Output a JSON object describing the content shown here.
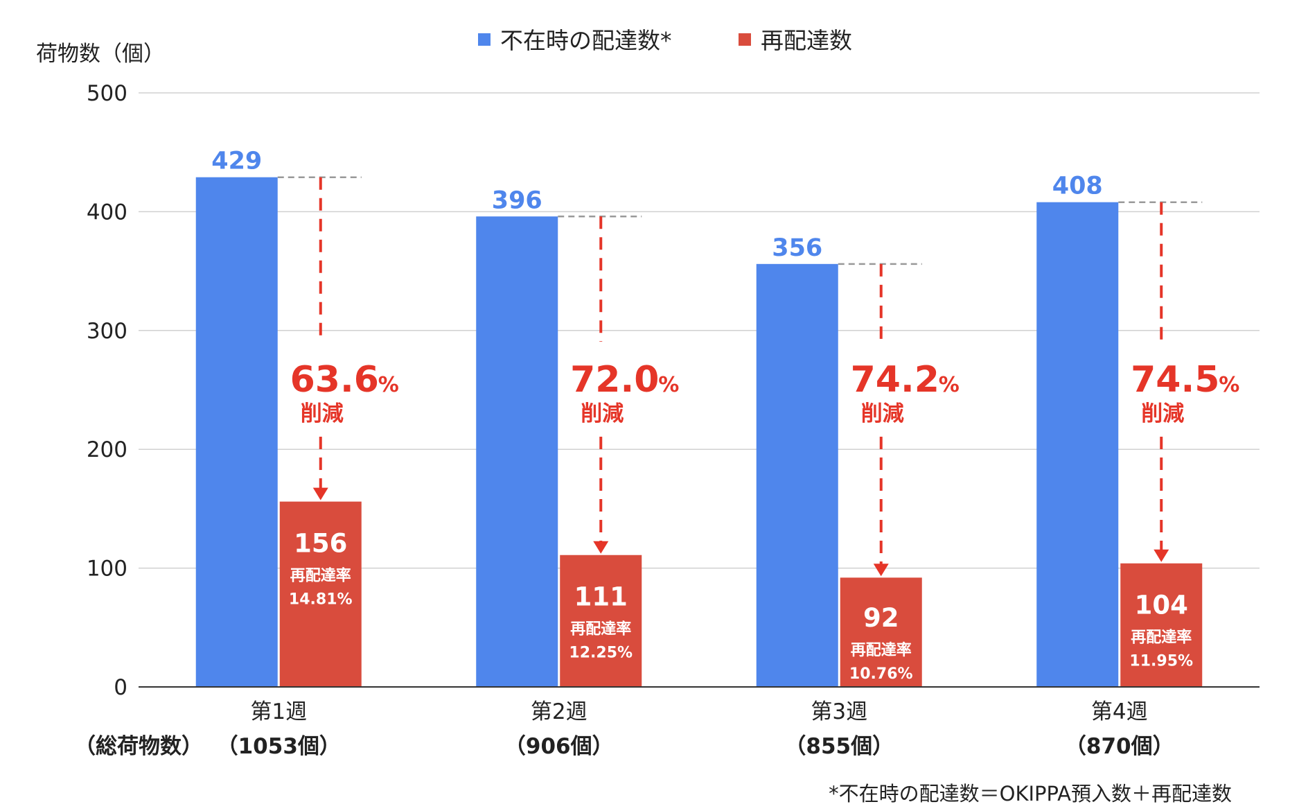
{
  "chart_data": {
    "type": "bar",
    "ylabel": "荷物数（個）",
    "ylim": [
      0,
      500
    ],
    "yticks": [
      "0",
      "100",
      "200",
      "300",
      "400",
      "500"
    ],
    "grid": true,
    "legend_position": "top-center",
    "categories": [
      "第1週",
      "第2週",
      "第3週",
      "第4週"
    ],
    "category_totals": [
      "（1053個）",
      "（906個）",
      "（855個）",
      "（870個）"
    ],
    "totals_row_label": "（総荷物数）",
    "series": [
      {
        "name": "不在時の配達数*",
        "color": "#4f86ec",
        "values": [
          429,
          396,
          356,
          408
        ]
      },
      {
        "name": "再配達数",
        "color": "#d94c3d",
        "values": [
          156,
          111,
          92,
          104
        ]
      }
    ],
    "reduction_percent": [
      "63.6",
      "72.0",
      "74.2",
      "74.5"
    ],
    "reduction_unit": "%",
    "reduction_label": "削減",
    "redelivery_rate_label": "再配達率",
    "redelivery_rates": [
      "14.81%",
      "12.25%",
      "10.76%",
      "11.95%"
    ],
    "footnote": "*不在時の配達数＝OKIPPA預入数＋再配達数",
    "colors": {
      "grid": "#d0d0d0",
      "axis": "#333333",
      "annotation": "#e53528",
      "guide": "#999999"
    }
  }
}
